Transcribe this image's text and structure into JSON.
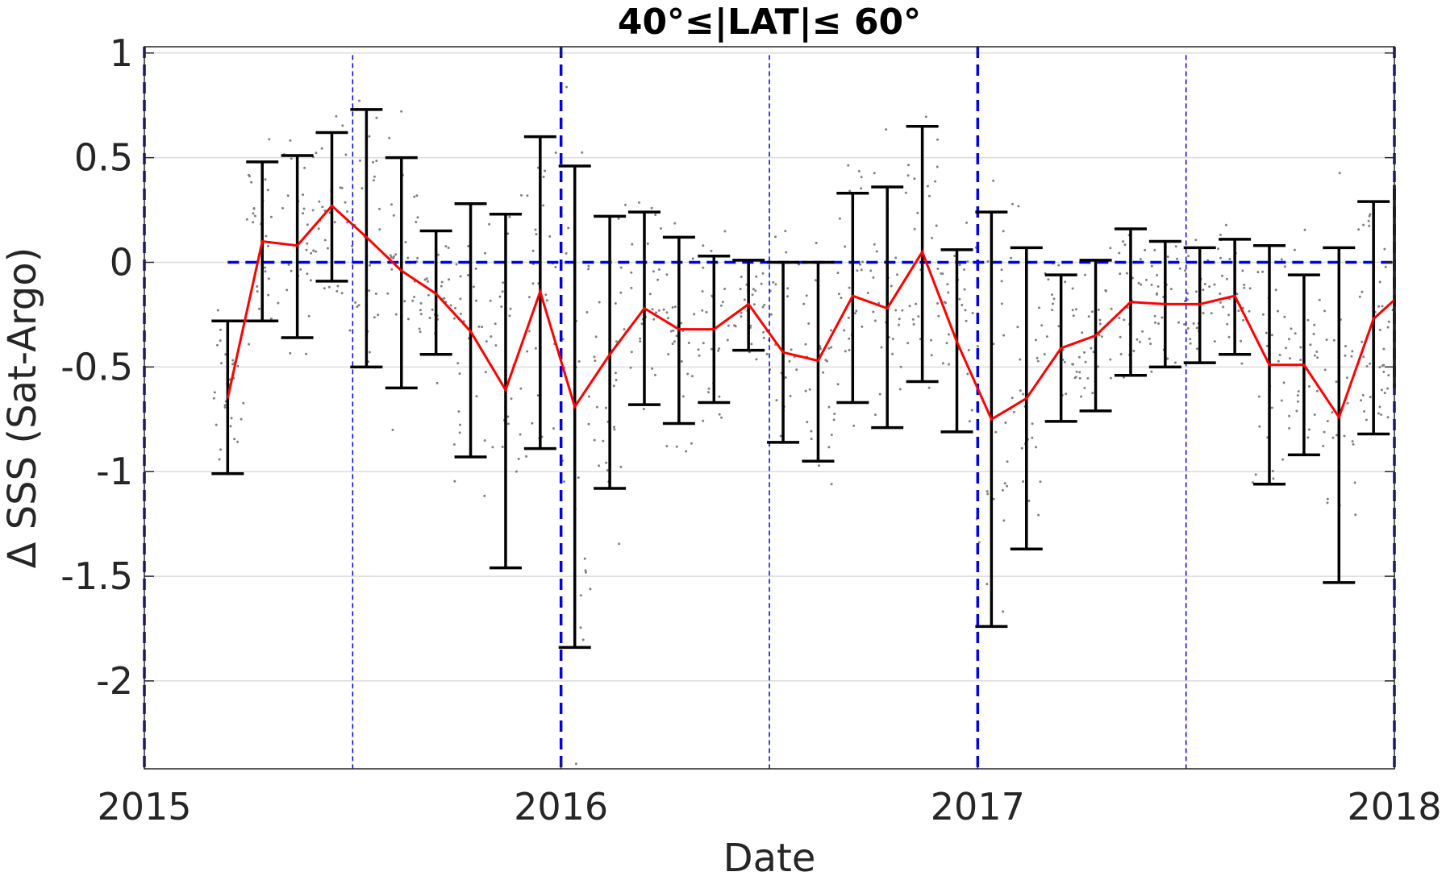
{
  "chart_data": {
    "type": "line",
    "title": "40°≤|LAT|≤ 60°",
    "xlabel": "Date",
    "ylabel": "Δ SSS (Sat-Argo)",
    "xlim": [
      2015.0,
      2018.0
    ],
    "ylim": [
      -2.42,
      1.03
    ],
    "x_ticks": [
      2015,
      2016,
      2017,
      2018
    ],
    "x_tick_labels": [
      "2015",
      "2016",
      "2017",
      "2018"
    ],
    "y_ticks": [
      1,
      0.5,
      0,
      -0.5,
      -1,
      -1.5,
      -2
    ],
    "y_tick_labels": [
      "1",
      "0.5",
      "0",
      "-0.5",
      "-1",
      "-1.5",
      "-2"
    ],
    "grid": "horizontal",
    "colors": {
      "mean_line": "#ff0000",
      "error_bars": "#000000",
      "reference_lines": "#0000ee",
      "points": "#808080"
    },
    "reference": {
      "zero_line": {
        "y": 0,
        "x_start": 2015.2
      },
      "year_lines": [
        2015.0,
        2016.0,
        2017.0,
        2018.0
      ],
      "half_year_lines": [
        2015.5,
        2016.5,
        2017.5
      ]
    },
    "series": [
      {
        "x": [
          2015.2,
          2015.283,
          2015.367,
          2015.45,
          2015.533,
          2015.617,
          2015.7,
          2015.783,
          2015.867,
          2015.95,
          2016.033,
          2016.117,
          2016.2,
          2016.283,
          2016.367,
          2016.45,
          2016.533,
          2016.617,
          2016.7,
          2016.783,
          2016.867,
          2016.95,
          2017.033,
          2017.117,
          2017.2,
          2017.283,
          2017.367,
          2017.45,
          2017.533,
          2017.617,
          2017.7,
          2017.783,
          2017.867,
          2017.95,
          2018.0
        ],
        "y": [
          -0.65,
          0.1,
          0.08,
          0.27,
          0.12,
          -0.04,
          -0.15,
          -0.33,
          -0.61,
          -0.14,
          -0.69,
          -0.44,
          -0.22,
          -0.32,
          -0.32,
          -0.2,
          -0.43,
          -0.47,
          -0.16,
          -0.22,
          0.05,
          -0.38,
          -0.75,
          -0.65,
          -0.41,
          -0.35,
          -0.19,
          -0.2,
          -0.2,
          -0.16,
          -0.49,
          -0.49,
          -0.74,
          -0.27,
          -0.18
        ],
        "upper": [
          -0.28,
          0.48,
          0.51,
          0.62,
          0.73,
          0.5,
          0.15,
          0.28,
          0.23,
          0.6,
          0.46,
          0.22,
          0.24,
          0.12,
          0.03,
          0.01,
          0.0,
          0.0,
          0.33,
          0.36,
          0.65,
          0.06,
          0.24,
          0.07,
          -0.06,
          0.01,
          0.16,
          0.1,
          0.07,
          0.11,
          0.08,
          -0.06,
          0.07,
          0.29,
          0.37
        ],
        "lower": [
          -1.01,
          -0.28,
          -0.36,
          -0.09,
          -0.5,
          -0.6,
          -0.44,
          -0.93,
          -1.46,
          -0.89,
          -1.84,
          -1.08,
          -0.68,
          -0.77,
          -0.67,
          -0.42,
          -0.86,
          -0.95,
          -0.67,
          -0.79,
          -0.57,
          -0.81,
          -1.74,
          -1.37,
          -0.76,
          -0.71,
          -0.54,
          -0.5,
          -0.48,
          -0.44,
          -1.06,
          -0.92,
          -1.53,
          -0.82,
          -0.6
        ]
      }
    ]
  }
}
